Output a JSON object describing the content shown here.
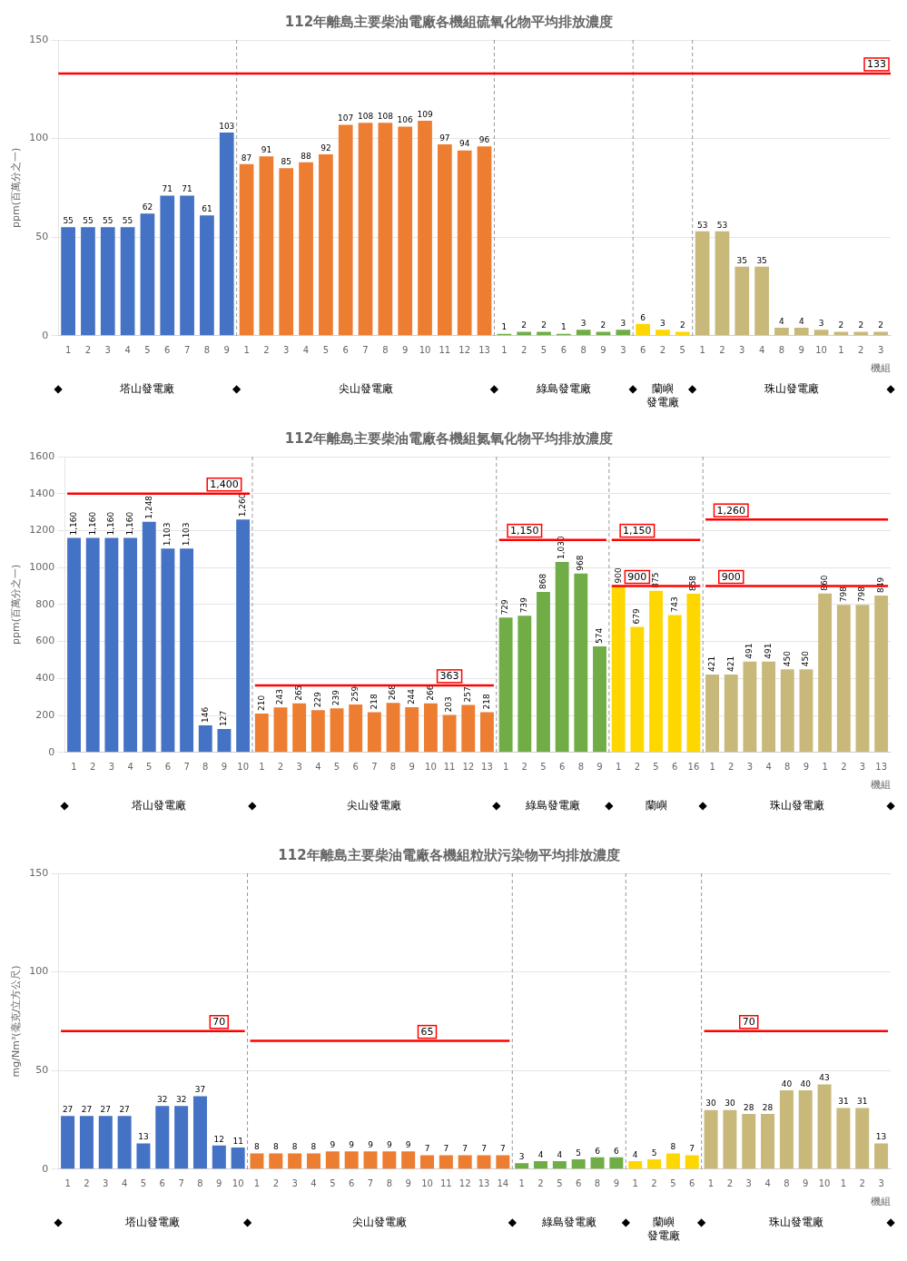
{
  "chart_data": [
    {
      "type": "bar",
      "title": "112年離島主要柴油電廠各機組硫氧化物平均排放濃度",
      "y_label": "ppm(百萬分之一)",
      "x_label": "機組",
      "ylim": [
        0,
        150
      ],
      "yticks": [
        0,
        50,
        100,
        150
      ],
      "grid": true,
      "data_labels": true,
      "annotations": [
        "◆"
      ],
      "reference_lines": [
        {
          "value": 133,
          "label": "133",
          "color": "#FF0000"
        }
      ],
      "groups": [
        {
          "name": "塔山發電廠",
          "color": "#4472C4",
          "categories": [
            "1",
            "2",
            "3",
            "4",
            "5",
            "6",
            "7",
            "8",
            "9"
          ],
          "values": [
            55,
            55,
            55,
            55,
            62,
            71,
            71,
            61,
            103
          ]
        },
        {
          "name": "尖山發電廠",
          "color": "#ED7D31",
          "categories": [
            "1",
            "2",
            "3",
            "4",
            "5",
            "6",
            "7",
            "8",
            "9",
            "10",
            "11",
            "12",
            "13"
          ],
          "values": [
            87,
            91,
            85,
            88,
            92,
            107,
            108,
            108,
            106,
            109,
            97,
            94,
            96
          ]
        },
        {
          "name": "綠島發電廠",
          "color": "#70AD47",
          "categories": [
            "1",
            "2",
            "5",
            "6",
            "8",
            "9",
            "3"
          ],
          "values": [
            1,
            2,
            2,
            1,
            3,
            2,
            3
          ]
        },
        {
          "name": "蘭嶼\n發電廠",
          "color": "#FFD700",
          "categories": [
            "6",
            "2",
            "5"
          ],
          "values": [
            6,
            3,
            2
          ]
        },
        {
          "name": "珠山發電廠",
          "color": "#C8B97A",
          "categories": [
            "1",
            "2",
            "3",
            "4",
            "8",
            "9",
            "10",
            "1",
            "2",
            "3"
          ],
          "values": [
            53,
            53,
            35,
            35,
            4,
            4,
            3,
            2,
            2,
            2
          ]
        }
      ]
    },
    {
      "type": "bar",
      "title": "112年離島主要柴油電廠各機組氮氧化物平均排放濃度",
      "y_label": "ppm(百萬分之一)",
      "x_label": "機組",
      "ylim": [
        0,
        1600
      ],
      "yticks": [
        0,
        200,
        400,
        600,
        800,
        1000,
        1200,
        1400,
        1600
      ],
      "grid": true,
      "data_labels": true,
      "annotations": [
        "◆"
      ],
      "groups": [
        {
          "name": "塔山發電廠",
          "color": "#4472C4",
          "categories": [
            "1",
            "2",
            "3",
            "4",
            "5",
            "6",
            "7",
            "8",
            "9",
            "10"
          ],
          "values": [
            1160,
            1160,
            1160,
            1160,
            1248,
            1103,
            1103,
            146,
            127,
            1260
          ],
          "value_labels": [
            "1,160",
            "1,160",
            "1,160",
            "1,160",
            "1,248",
            "1,103",
            "1,103",
            "146",
            "127",
            "1,260"
          ],
          "reference_lines": [
            {
              "value": 1400,
              "label": "1,400",
              "color": "#FF0000"
            }
          ]
        },
        {
          "name": "尖山發電廠",
          "color": "#ED7D31",
          "categories": [
            "1",
            "2",
            "3",
            "4",
            "5",
            "6",
            "7",
            "8",
            "9",
            "10",
            "11",
            "12",
            "13"
          ],
          "values": [
            210,
            243,
            265,
            229,
            239,
            259,
            218,
            268,
            244,
            266,
            203,
            257,
            218
          ],
          "reference_lines": [
            {
              "value": 363,
              "label": "363",
              "color": "#FF0000"
            }
          ]
        },
        {
          "name": "綠島發電廠",
          "color": "#70AD47",
          "categories": [
            "1",
            "2",
            "5",
            "6",
            "8",
            "9"
          ],
          "values": [
            729,
            739,
            868,
            1030,
            968,
            574
          ],
          "value_labels": [
            "729",
            "739",
            "868",
            "1,030",
            "968",
            "574"
          ],
          "reference_lines": [
            {
              "value": 1150,
              "label": "1,150",
              "color": "#FF0000"
            }
          ]
        },
        {
          "name": "蘭嶼",
          "color": "#FFD700",
          "categories": [
            "1",
            "2",
            "5",
            "6",
            "16"
          ],
          "values": [
            900,
            679,
            875,
            743,
            858
          ],
          "reference_lines": [
            {
              "value": 1150,
              "label": "1,150",
              "color": "#FF0000"
            },
            {
              "value": 900,
              "label": "900",
              "color": "#FF0000"
            }
          ]
        },
        {
          "name": "珠山發電廠",
          "color": "#C8B97A",
          "categories": [
            "1",
            "2",
            "3",
            "4",
            "8",
            "9",
            "1",
            "2",
            "3",
            "13"
          ],
          "values": [
            421,
            421,
            491,
            491,
            450,
            450,
            860,
            798,
            798,
            849
          ],
          "reference_lines": [
            {
              "value": 1260,
              "label": "1,260",
              "color": "#FF0000"
            },
            {
              "value": 900,
              "label": "900",
              "color": "#FF0000"
            }
          ]
        }
      ]
    },
    {
      "type": "bar",
      "title": "112年離島主要柴油電廠各機組粒狀污染物平均排放濃度",
      "y_label": "mg/Nm³(毫克/立方公尺)",
      "x_label": "機組",
      "ylim": [
        0,
        150
      ],
      "yticks": [
        0,
        50,
        100,
        150
      ],
      "grid": true,
      "data_labels": true,
      "annotations": [
        "◆"
      ],
      "groups": [
        {
          "name": "塔山發電廠",
          "color": "#4472C4",
          "categories": [
            "1",
            "2",
            "3",
            "4",
            "5",
            "6",
            "7",
            "8",
            "9",
            "10"
          ],
          "values": [
            27,
            27,
            27,
            27,
            13,
            32,
            32,
            37,
            12,
            11
          ],
          "reference_lines": [
            {
              "value": 70,
              "label": "70",
              "color": "#FF0000"
            }
          ]
        },
        {
          "name": "尖山發電廠",
          "color": "#ED7D31",
          "categories": [
            "1",
            "2",
            "3",
            "4",
            "5",
            "6",
            "7",
            "8",
            "9",
            "10",
            "11",
            "12",
            "13",
            "14"
          ],
          "values": [
            8,
            8,
            8,
            8,
            9,
            9,
            9,
            9,
            9,
            7,
            7,
            7,
            7,
            7
          ],
          "reference_lines": [
            {
              "value": 65,
              "label": "65",
              "color": "#FF0000"
            }
          ]
        },
        {
          "name": "綠島發電廠",
          "color": "#70AD47",
          "categories": [
            "1",
            "2",
            "5",
            "6",
            "8",
            "9"
          ],
          "values": [
            3,
            4,
            4,
            5,
            6,
            6
          ]
        },
        {
          "name": "蘭嶼\n發電廠",
          "color": "#FFD700",
          "categories": [
            "1",
            "2",
            "5",
            "6"
          ],
          "values": [
            4,
            5,
            8,
            7
          ]
        },
        {
          "name": "珠山發電廠",
          "color": "#C8B97A",
          "categories": [
            "1",
            "2",
            "3",
            "4",
            "8",
            "9",
            "10",
            "1",
            "2",
            "3"
          ],
          "values": [
            30,
            30,
            28,
            28,
            40,
            40,
            43,
            31,
            31,
            13
          ],
          "reference_lines": [
            {
              "value": 70,
              "label": "70",
              "color": "#FF0000"
            }
          ]
        }
      ]
    }
  ]
}
